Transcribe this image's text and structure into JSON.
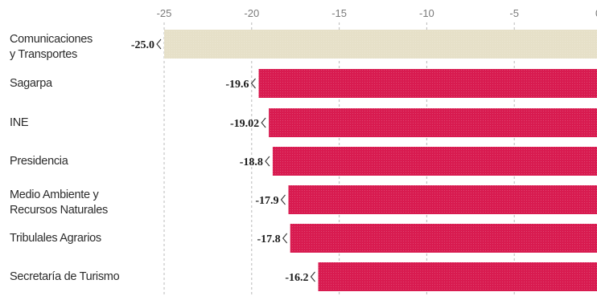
{
  "chart_data": {
    "type": "bar",
    "orientation": "horizontal",
    "title": "",
    "xlabel": "",
    "ylabel": "",
    "xlim": [
      -25,
      0
    ],
    "x_ticks": [
      -25,
      -20,
      -15,
      -10,
      -5
    ],
    "grid": true,
    "categories": [
      [
        "Comunicaciones",
        "y Transportes"
      ],
      [
        "Sagarpa"
      ],
      [
        "INE"
      ],
      [
        "Presidencia"
      ],
      [
        "Medio Ambiente y",
        "Recursos Naturales"
      ],
      [
        "Tribulales Agrarios"
      ],
      [
        "Secretaría de Turismo"
      ]
    ],
    "values": [
      -25.0,
      -19.6,
      -19.02,
      -18.8,
      -17.9,
      -17.8,
      -16.2
    ],
    "value_labels": [
      "-25.0",
      "-19.6",
      "-19.02",
      "-18.8",
      "-17.9",
      "-17.8",
      "-16.2"
    ],
    "colors": [
      "#e6e0c8",
      "#d81b50",
      "#d81b50",
      "#d81b50",
      "#d81b50",
      "#d81b50",
      "#d81b50"
    ]
  }
}
